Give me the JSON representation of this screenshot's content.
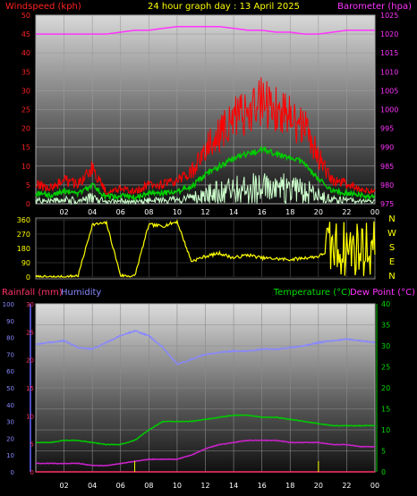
{
  "header": {
    "title": "24 hour graph day : 13 April 2025",
    "windspeed_label": "Windspeed (kph)",
    "barometer_label": "Barometer (hpa)",
    "rainfall_label": "Rainfall (mm)",
    "humidity_label": "Humidity",
    "temperature_label": "Temperature (°C)",
    "dewpoint_label": "Dew Point (°C)"
  },
  "colors": {
    "windspeed": "#ff0000",
    "wind_avg": "#00cc00",
    "wind_low": "#ccffcc",
    "barometer": "#ff33ff",
    "direction": "#ffff00",
    "rain": "#ff3366",
    "humidity": "#8888ff",
    "temperature": "#00cc00",
    "dewpoint": "#cc22cc",
    "rain_marks": "#ffff00"
  },
  "x_ticks": [
    "02",
    "04",
    "06",
    "08",
    "10",
    "12",
    "14",
    "16",
    "18",
    "20",
    "22",
    "00"
  ],
  "chart_data": [
    {
      "type": "line",
      "name": "wind-barometer",
      "x": [
        0,
        1,
        2,
        3,
        4,
        5,
        6,
        7,
        8,
        9,
        10,
        11,
        12,
        13,
        14,
        15,
        16,
        17,
        18,
        19,
        20,
        21,
        22,
        23,
        24
      ],
      "series": [
        {
          "name": "Windspeed (kph)",
          "axis": "left",
          "values": [
            5,
            4,
            6,
            5,
            9,
            3,
            4,
            3,
            5,
            5,
            6,
            8,
            14,
            18,
            22,
            24,
            26,
            24,
            22,
            20,
            12,
            6,
            5,
            4,
            3
          ]
        },
        {
          "name": "Barometer (hpa)",
          "axis": "right",
          "values": [
            1020,
            1020,
            1020,
            1020,
            1020,
            1020,
            1020.5,
            1021,
            1021,
            1021.5,
            1022,
            1022,
            1022,
            1022,
            1021.5,
            1021,
            1021,
            1020.5,
            1020.5,
            1020,
            1020,
            1020.5,
            1021,
            1021,
            1021
          ]
        }
      ],
      "y_left": {
        "min": 0,
        "max": 50,
        "step": 5
      },
      "y_right": {
        "min": 975,
        "max": 1025,
        "step": 5
      }
    },
    {
      "type": "line",
      "name": "wind-direction",
      "x": [
        0,
        1,
        2,
        3,
        4,
        5,
        6,
        7,
        8,
        9,
        10,
        11,
        12,
        13,
        14,
        15,
        16,
        17,
        18,
        19,
        20,
        21,
        22,
        23,
        24
      ],
      "series": [
        {
          "name": "Wind direction",
          "values": [
            0,
            0,
            0,
            10,
            330,
            340,
            10,
            5,
            330,
            320,
            350,
            100,
            130,
            150,
            120,
            140,
            120,
            115,
            110,
            120,
            130,
            180,
            250,
            280,
            200
          ]
        }
      ],
      "y_left": {
        "min": 0,
        "max": 360,
        "ticks": [
          0,
          90,
          180,
          270,
          360
        ]
      },
      "compass": [
        "N",
        "W",
        "S",
        "E",
        "N"
      ]
    },
    {
      "type": "line",
      "name": "temperature-humidity",
      "x": [
        0,
        1,
        2,
        3,
        4,
        5,
        6,
        7,
        8,
        9,
        10,
        11,
        12,
        13,
        14,
        15,
        16,
        17,
        18,
        19,
        20,
        21,
        22,
        23,
        24
      ],
      "series": [
        {
          "name": "Humidity",
          "axis": "humidity",
          "values": [
            76,
            77,
            78,
            74,
            73,
            77,
            81,
            84,
            81,
            74,
            64,
            67,
            70,
            71,
            72,
            72,
            73,
            73,
            74,
            75,
            77,
            78,
            79,
            78,
            77
          ]
        },
        {
          "name": "Temperature (°C)",
          "axis": "right",
          "values": [
            7,
            7,
            7.5,
            7.5,
            7,
            6.5,
            6.5,
            7.5,
            10,
            12,
            12,
            12,
            12.5,
            13,
            13.5,
            13.5,
            13,
            13,
            12.5,
            12,
            11.5,
            11,
            11,
            11,
            11
          ]
        },
        {
          "name": "Dew Point (°C)",
          "axis": "right",
          "values": [
            2,
            2,
            2,
            2,
            1.5,
            1.5,
            2,
            2.5,
            3,
            3,
            3,
            4,
            5.5,
            6.5,
            7,
            7.5,
            7.5,
            7.5,
            7,
            7,
            7,
            6.5,
            6.5,
            6,
            6
          ]
        },
        {
          "name": "Rainfall (mm)",
          "axis": "rain",
          "values": [
            0,
            0,
            0,
            0,
            0,
            0,
            0,
            0,
            0,
            0,
            0,
            0,
            0,
            0,
            0,
            0,
            0,
            0,
            0,
            0,
            0,
            0,
            0,
            0,
            0
          ]
        }
      ],
      "y_humidity": {
        "min": 0,
        "max": 100,
        "step": 10
      },
      "y_rain": {
        "min": 0,
        "max": 30,
        "step": 5
      },
      "y_right": {
        "min": 0,
        "max": 40,
        "step": 5
      }
    }
  ]
}
